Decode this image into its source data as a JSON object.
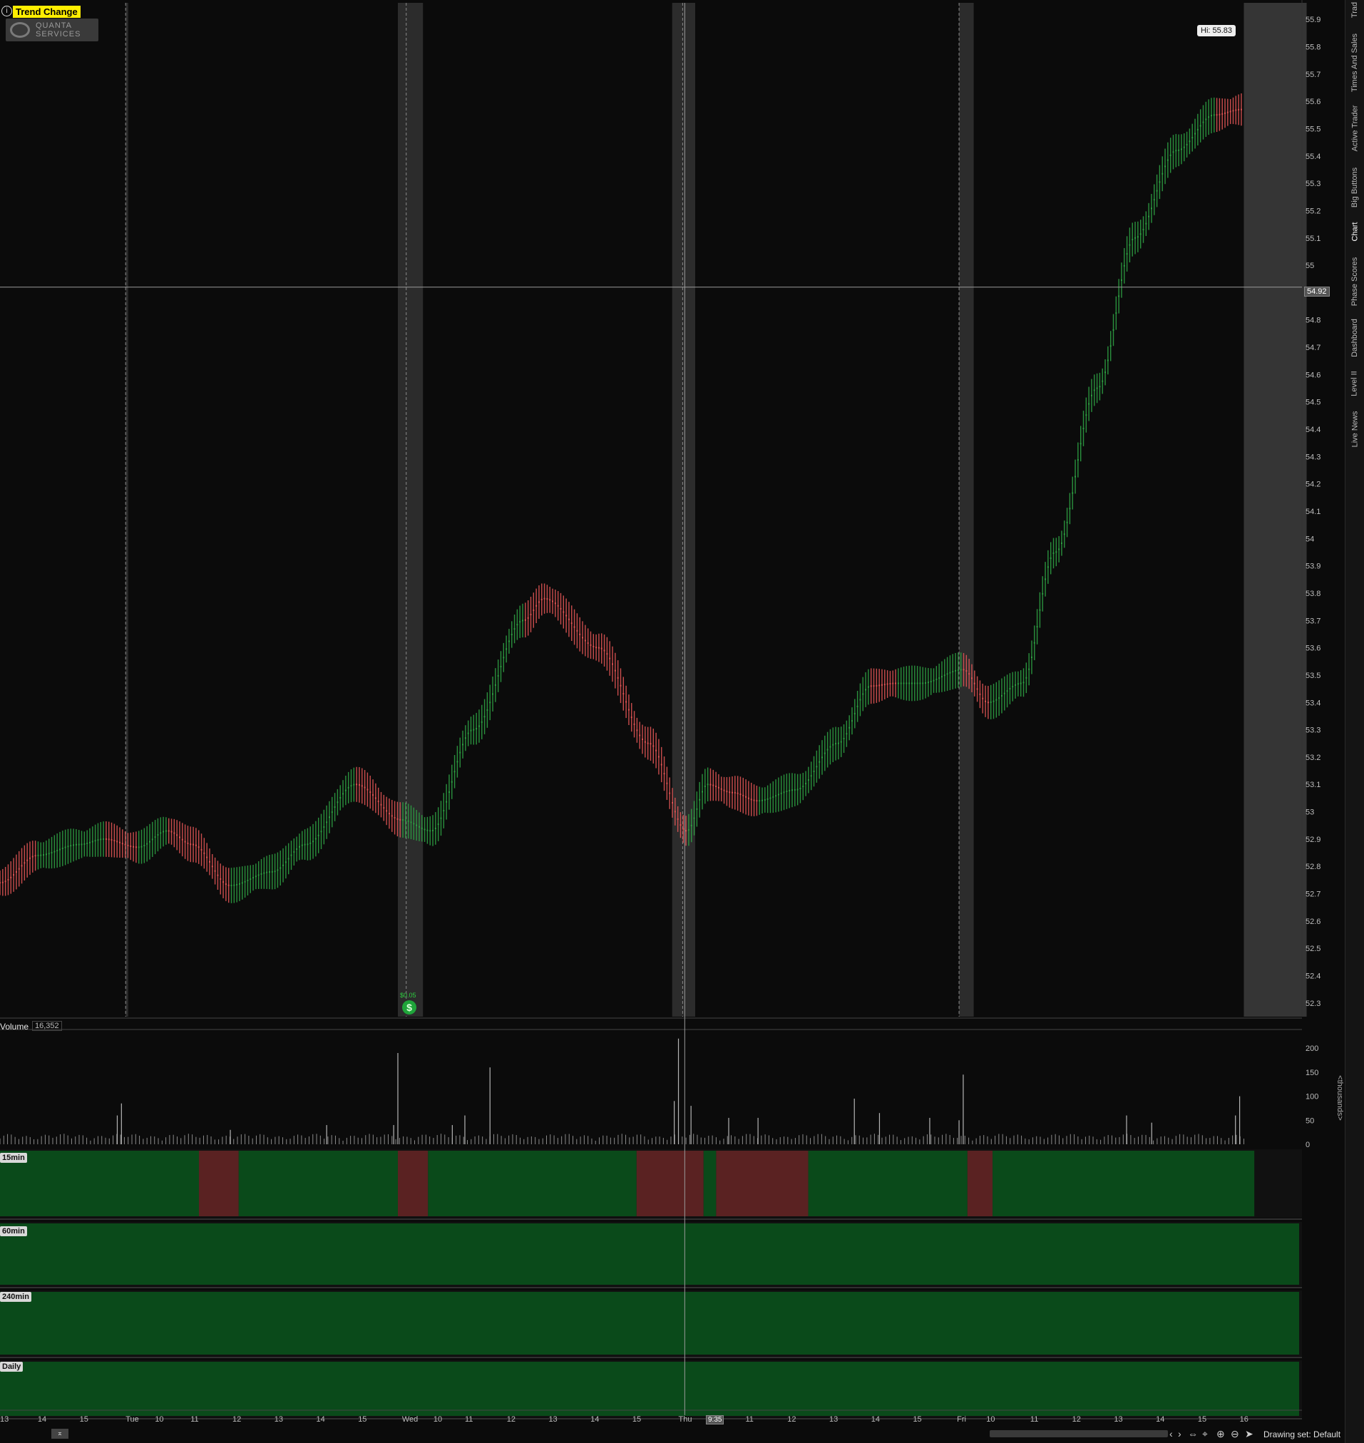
{
  "header": {
    "study_name": "Trend Change",
    "info_icon": "info-circle-icon",
    "company_logo_text": "QUANTA SERVICES"
  },
  "price_panel": {
    "high_bubble": "Hi: 55.83",
    "crosshair_price": "54.92",
    "dividend_label": "$0.05",
    "dividend_icon": "dollar-circle-icon"
  },
  "volume_panel": {
    "label": "Volume",
    "value": "16,352",
    "axis_unit": "<thousands>"
  },
  "trend_panels": [
    {
      "label": "15min"
    },
    {
      "label": "60min"
    },
    {
      "label": "240min"
    },
    {
      "label": "Daily"
    }
  ],
  "right_tabs": [
    "Times And Sales",
    "Active Trader",
    "Big Buttons",
    "Chart",
    "Phase Scores",
    "Dashboard",
    "Level II",
    "Live News"
  ],
  "right_tab_top": "Trad",
  "x_axis": {
    "crosshair_time": "9:35",
    "crosshair_day_prefix": "Th"
  },
  "footer": {
    "drawing_set": "Drawing set: Default"
  },
  "colors": {
    "up": "#2ea043",
    "down": "#e05555",
    "trend_up_bg": "#0a4a1a",
    "trend_down_bg": "#5a2222",
    "session_band": "#3a3a3a",
    "highlight": "#ffee00"
  },
  "chart_data": [
    {
      "type": "line",
      "title": "",
      "ylim": [
        52.25,
        55.95
      ],
      "y_ticks": [
        55.9,
        55.8,
        55.7,
        55.6,
        55.5,
        55.4,
        55.3,
        55.2,
        55.1,
        55,
        54.9,
        54.8,
        54.7,
        54.6,
        54.5,
        54.4,
        54.3,
        54.2,
        54.1,
        54,
        53.9,
        53.8,
        53.7,
        53.6,
        53.5,
        53.4,
        53.3,
        53.2,
        53.1,
        53,
        52.9,
        52.8,
        52.7,
        52.6,
        52.5,
        52.4,
        52.3
      ],
      "y_tick_labels": [
        "55.9",
        "55.8",
        "55.7",
        "55.6",
        "55.5",
        "55.4",
        "55.3",
        "55.2",
        "55.1",
        "55",
        "54.9",
        "54.8",
        "54.7",
        "54.6",
        "54.5",
        "54.4",
        "54.3",
        "54.2",
        "54.1",
        "54",
        "53.9",
        "53.8",
        "53.7",
        "53.6",
        "53.5",
        "53.4",
        "53.3",
        "53.2",
        "53.1",
        "53",
        "52.9",
        "52.8",
        "52.7",
        "52.6",
        "52.5",
        "52.4",
        "52.3"
      ],
      "x_tick_labels": [
        "13",
        "14",
        "15",
        "Tue",
        "10",
        "11",
        "12",
        "13",
        "14",
        "15",
        "Wed",
        "10",
        "11",
        "12",
        "13",
        "14",
        "15",
        "Thu",
        "10",
        "11",
        "12",
        "13",
        "14",
        "15",
        "Fri",
        "10",
        "11",
        "12",
        "13",
        "14",
        "15",
        "16"
      ],
      "x_tick_positions": [
        0.0,
        0.9,
        1.9,
        3.0,
        3.7,
        4.55,
        5.55,
        6.55,
        7.55,
        8.55,
        9.6,
        10.35,
        11.1,
        12.1,
        13.1,
        14.1,
        15.1,
        16.2,
        16.95,
        17.8,
        18.8,
        19.8,
        20.8,
        21.8,
        22.85,
        23.55,
        24.6,
        25.6,
        26.6,
        27.6,
        28.6,
        29.6
      ],
      "key_points": [
        {
          "t": 0.0,
          "p": 52.74,
          "dir": "up"
        },
        {
          "t": 0.9,
          "p": 52.84,
          "dir": "down"
        },
        {
          "t": 1.9,
          "p": 52.88,
          "dir": "up"
        },
        {
          "t": 2.5,
          "p": 52.9,
          "dir": "up"
        },
        {
          "t": 3.3,
          "p": 52.87,
          "dir": "down"
        },
        {
          "t": 4.0,
          "p": 52.93,
          "dir": "up"
        },
        {
          "t": 4.6,
          "p": 52.88,
          "dir": "down"
        },
        {
          "t": 5.5,
          "p": 52.73,
          "dir": "down"
        },
        {
          "t": 6.5,
          "p": 52.78,
          "dir": "up"
        },
        {
          "t": 7.3,
          "p": 52.88,
          "dir": "up"
        },
        {
          "t": 8.5,
          "p": 53.1,
          "dir": "up"
        },
        {
          "t": 9.6,
          "p": 52.97,
          "dir": "down"
        },
        {
          "t": 10.3,
          "p": 52.93,
          "dir": "up"
        },
        {
          "t": 11.3,
          "p": 53.3,
          "dir": "up"
        },
        {
          "t": 12.5,
          "p": 53.7,
          "dir": "up"
        },
        {
          "t": 13.0,
          "p": 53.78,
          "dir": "down"
        },
        {
          "t": 14.3,
          "p": 53.6,
          "dir": "down"
        },
        {
          "t": 15.5,
          "p": 53.25,
          "dir": "down"
        },
        {
          "t": 16.4,
          "p": 52.93,
          "dir": "down"
        },
        {
          "t": 16.9,
          "p": 53.1,
          "dir": "up"
        },
        {
          "t": 17.5,
          "p": 53.07,
          "dir": "down"
        },
        {
          "t": 18.1,
          "p": 53.04,
          "dir": "down"
        },
        {
          "t": 19.0,
          "p": 53.08,
          "dir": "up"
        },
        {
          "t": 20.0,
          "p": 53.25,
          "dir": "up"
        },
        {
          "t": 20.8,
          "p": 53.46,
          "dir": "up"
        },
        {
          "t": 21.4,
          "p": 53.47,
          "dir": "down"
        },
        {
          "t": 22.0,
          "p": 53.47,
          "dir": "up"
        },
        {
          "t": 23.0,
          "p": 53.52,
          "dir": "up"
        },
        {
          "t": 23.6,
          "p": 53.4,
          "dir": "down"
        },
        {
          "t": 24.4,
          "p": 53.47,
          "dir": "up"
        },
        {
          "t": 25.2,
          "p": 53.95,
          "dir": "up"
        },
        {
          "t": 26.2,
          "p": 54.55,
          "dir": "up"
        },
        {
          "t": 27.1,
          "p": 55.1,
          "dir": "up"
        },
        {
          "t": 28.1,
          "p": 55.42,
          "dir": "up"
        },
        {
          "t": 29.0,
          "p": 55.55,
          "dir": "up"
        },
        {
          "t": 29.65,
          "p": 55.57,
          "dir": "down"
        }
      ]
    },
    {
      "type": "bar",
      "title": "Volume",
      "ylim": [
        0,
        230
      ],
      "y_ticks": [
        200,
        150,
        100,
        50,
        0
      ],
      "y_tick_labels": [
        "200",
        "150",
        "100",
        "50",
        "0"
      ],
      "ylabel": "<thousands>",
      "spikes": [
        {
          "t": 2.8,
          "v": 60
        },
        {
          "t": 2.9,
          "v": 85
        },
        {
          "t": 5.5,
          "v": 30
        },
        {
          "t": 7.8,
          "v": 40
        },
        {
          "t": 9.4,
          "v": 40
        },
        {
          "t": 9.5,
          "v": 190
        },
        {
          "t": 10.8,
          "v": 40
        },
        {
          "t": 11.1,
          "v": 60
        },
        {
          "t": 11.7,
          "v": 160
        },
        {
          "t": 16.1,
          "v": 90
        },
        {
          "t": 16.2,
          "v": 220
        },
        {
          "t": 16.5,
          "v": 80
        },
        {
          "t": 17.4,
          "v": 55
        },
        {
          "t": 18.1,
          "v": 55
        },
        {
          "t": 20.4,
          "v": 95
        },
        {
          "t": 21.0,
          "v": 65
        },
        {
          "t": 22.2,
          "v": 55
        },
        {
          "t": 22.9,
          "v": 50
        },
        {
          "t": 23.0,
          "v": 145
        },
        {
          "t": 26.9,
          "v": 60
        },
        {
          "t": 27.5,
          "v": 45
        },
        {
          "t": 29.5,
          "v": 60
        },
        {
          "t": 29.6,
          "v": 100
        }
      ]
    }
  ],
  "trend_segments_15min": [
    {
      "from": 0,
      "to": 4.75,
      "state": "up"
    },
    {
      "from": 4.75,
      "to": 5.7,
      "state": "down"
    },
    {
      "from": 5.7,
      "to": 9.5,
      "state": "up"
    },
    {
      "from": 9.5,
      "to": 10.22,
      "state": "down"
    },
    {
      "from": 10.22,
      "to": 15.2,
      "state": "up"
    },
    {
      "from": 15.2,
      "to": 16.8,
      "state": "down"
    },
    {
      "from": 16.8,
      "to": 17.1,
      "state": "up"
    },
    {
      "from": 17.1,
      "to": 19.3,
      "state": "down"
    },
    {
      "from": 19.3,
      "to": 23.1,
      "state": "up"
    },
    {
      "from": 23.1,
      "to": 23.7,
      "state": "down"
    },
    {
      "from": 23.7,
      "to": 29.95,
      "state": "up"
    }
  ]
}
